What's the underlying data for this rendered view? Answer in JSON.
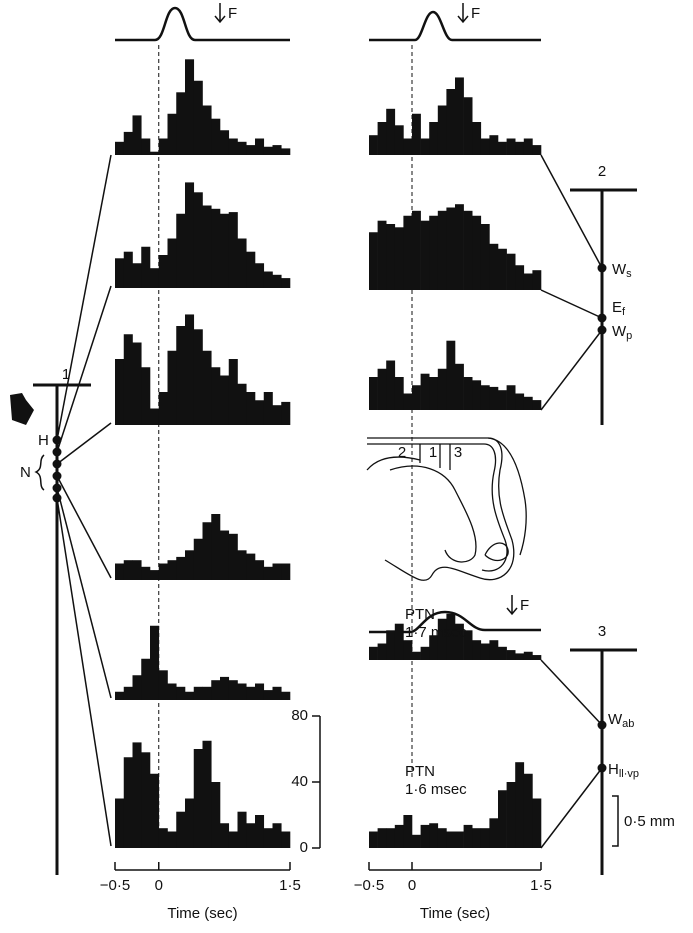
{
  "chart_data": [
    {
      "type": "histogram",
      "bins": [
        -0.5,
        -0.4,
        -0.3,
        -0.2,
        -0.1,
        0,
        0.1,
        0.2,
        0.3,
        0.4,
        0.5,
        0.6,
        0.7,
        0.8,
        0.9,
        1,
        1.1,
        1.2,
        1.3,
        1.4,
        1.5
      ],
      "values": [
        8,
        14,
        24,
        10,
        2,
        10,
        25,
        38,
        58,
        45,
        30,
        22,
        15,
        10,
        8,
        6,
        10,
        5,
        6,
        4
      ]
    },
    {
      "type": "histogram",
      "bins": [
        -0.5,
        -0.4,
        -0.3,
        -0.2,
        -0.1,
        0,
        0.1,
        0.2,
        0.3,
        0.4,
        0.5,
        0.6,
        0.7,
        0.8,
        0.9,
        1,
        1.1,
        1.2,
        1.3,
        1.4,
        1.5
      ],
      "values": [
        18,
        22,
        15,
        25,
        12,
        20,
        30,
        45,
        64,
        58,
        50,
        48,
        45,
        46,
        30,
        22,
        15,
        10,
        8,
        6
      ]
    },
    {
      "type": "histogram",
      "bins": [
        -0.5,
        -0.4,
        -0.3,
        -0.2,
        -0.1,
        0,
        0.1,
        0.2,
        0.3,
        0.4,
        0.5,
        0.6,
        0.7,
        0.8,
        0.9,
        1,
        1.1,
        1.2,
        1.3,
        1.4,
        1.5
      ],
      "values": [
        40,
        55,
        50,
        35,
        10,
        20,
        45,
        60,
        67,
        58,
        45,
        35,
        30,
        40,
        25,
        20,
        15,
        20,
        12,
        14
      ]
    },
    {
      "type": "histogram",
      "bins": [
        -0.5,
        -0.4,
        -0.3,
        -0.2,
        -0.1,
        0,
        0.1,
        0.2,
        0.3,
        0.4,
        0.5,
        0.6,
        0.7,
        0.8,
        0.9,
        1,
        1.1,
        1.2,
        1.3,
        1.4,
        1.5
      ],
      "values": [
        10,
        12,
        12,
        8,
        6,
        10,
        12,
        14,
        18,
        25,
        35,
        40,
        30,
        28,
        18,
        16,
        12,
        8,
        10,
        10
      ]
    },
    {
      "type": "histogram",
      "bins": [
        -0.5,
        -0.4,
        -0.3,
        -0.2,
        -0.1,
        0,
        0.1,
        0.2,
        0.3,
        0.4,
        0.5,
        0.6,
        0.7,
        0.8,
        0.9,
        1,
        1.1,
        1.2,
        1.3,
        1.4,
        1.5
      ],
      "values": [
        5,
        8,
        15,
        25,
        45,
        18,
        10,
        8,
        5,
        8,
        8,
        12,
        14,
        12,
        10,
        8,
        10,
        6,
        8,
        5
      ]
    },
    {
      "type": "histogram",
      "bins": [
        -0.5,
        -0.4,
        -0.3,
        -0.2,
        -0.1,
        0,
        0.1,
        0.2,
        0.3,
        0.4,
        0.5,
        0.6,
        0.7,
        0.8,
        0.9,
        1,
        1.1,
        1.2,
        1.3,
        1.4,
        1.5
      ],
      "values": [
        30,
        55,
        64,
        58,
        45,
        12,
        10,
        22,
        30,
        60,
        65,
        40,
        15,
        10,
        22,
        15,
        20,
        12,
        15,
        10
      ],
      "ylim": [
        0,
        80
      ],
      "yticks": [
        0,
        40,
        80
      ],
      "xticks": [
        {
          "value": -0.5,
          "label": "−0·5"
        },
        0,
        {
          "value": 1.5,
          "label": "1·5"
        }
      ],
      "xlabel": "Time (sec)"
    },
    {
      "type": "histogram",
      "bins": [
        -0.5,
        -0.4,
        -0.3,
        -0.2,
        -0.1,
        0,
        0.1,
        0.2,
        0.3,
        0.4,
        0.5,
        0.6,
        0.7,
        0.8,
        0.9,
        1,
        1.1,
        1.2,
        1.3,
        1.4,
        1.5
      ],
      "values": [
        12,
        20,
        28,
        18,
        10,
        25,
        10,
        20,
        30,
        40,
        47,
        35,
        20,
        10,
        12,
        8,
        10,
        8,
        10,
        6
      ]
    },
    {
      "type": "histogram",
      "bins": [
        -0.5,
        -0.4,
        -0.3,
        -0.2,
        -0.1,
        0,
        0.1,
        0.2,
        0.3,
        0.4,
        0.5,
        0.6,
        0.7,
        0.8,
        0.9,
        1,
        1.1,
        1.2,
        1.3,
        1.4,
        1.5
      ],
      "values": [
        35,
        42,
        40,
        38,
        45,
        48,
        42,
        45,
        48,
        50,
        52,
        48,
        45,
        40,
        28,
        25,
        22,
        15,
        10,
        12
      ]
    },
    {
      "type": "histogram",
      "bins": [
        -0.5,
        -0.4,
        -0.3,
        -0.2,
        -0.1,
        0,
        0.1,
        0.2,
        0.3,
        0.4,
        0.5,
        0.6,
        0.7,
        0.8,
        0.9,
        1,
        1.1,
        1.2,
        1.3,
        1.4,
        1.5
      ],
      "values": [
        20,
        25,
        30,
        20,
        10,
        15,
        22,
        20,
        25,
        42,
        28,
        20,
        18,
        15,
        14,
        12,
        15,
        10,
        8,
        6
      ]
    },
    {
      "type": "histogram",
      "bins": [
        -0.5,
        -0.4,
        -0.3,
        -0.2,
        -0.1,
        0,
        0.1,
        0.2,
        0.3,
        0.4,
        0.5,
        0.6,
        0.7,
        0.8,
        0.9,
        1,
        1.1,
        1.2,
        1.3,
        1.4,
        1.5
      ],
      "values": [
        8,
        10,
        18,
        22,
        12,
        5,
        8,
        15,
        25,
        28,
        22,
        18,
        12,
        10,
        12,
        8,
        6,
        4,
        5,
        3
      ],
      "annotation": [
        "PTN",
        "1·7 msec"
      ]
    },
    {
      "type": "histogram",
      "bins": [
        -0.5,
        -0.4,
        -0.3,
        -0.2,
        -0.1,
        0,
        0.1,
        0.2,
        0.3,
        0.4,
        0.5,
        0.6,
        0.7,
        0.8,
        0.9,
        1,
        1.1,
        1.2,
        1.3,
        1.4,
        1.5
      ],
      "values": [
        10,
        12,
        12,
        14,
        20,
        8,
        14,
        15,
        12,
        10,
        10,
        14,
        12,
        12,
        18,
        35,
        40,
        52,
        45,
        30
      ],
      "annotation": [
        "PTN",
        "1·6 msec"
      ],
      "xticks": [
        {
          "value": -0.5,
          "label": "−0·5"
        },
        0,
        {
          "value": 1.5,
          "label": "1·5"
        }
      ],
      "xlabel": "Time (sec)"
    }
  ],
  "labels": {
    "stimulus": "F",
    "probe_1": "1",
    "probe_2": "2",
    "probe_3": "3",
    "hand": "H",
    "nerve": "N",
    "ws": [
      "W",
      "s"
    ],
    "ef": [
      "E",
      "f"
    ],
    "wp": [
      "W",
      "p"
    ],
    "wab": [
      "W",
      "ab"
    ],
    "hv": [
      "H",
      "ll·vp"
    ],
    "scale": "0·5 mm",
    "section": [
      "2",
      "1",
      "3"
    ]
  }
}
